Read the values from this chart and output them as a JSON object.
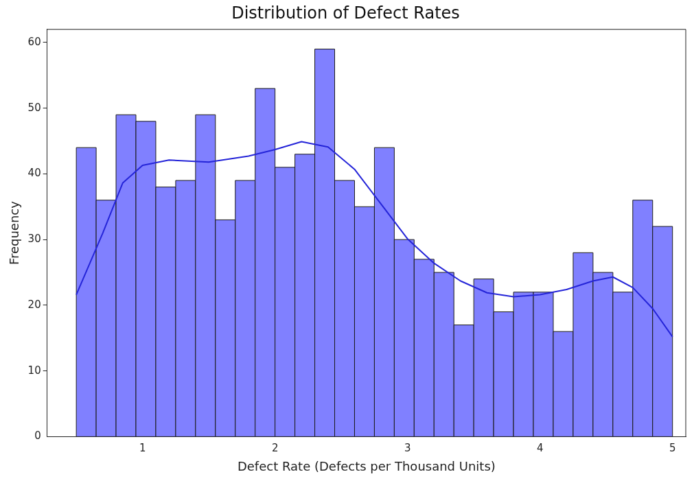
{
  "chart_data": {
    "type": "histogram",
    "title": "Distribution of Defect Rates",
    "xlabel": "Defect Rate (Defects per Thousand Units)",
    "ylabel": "Frequency",
    "bins": [
      0.5,
      0.65,
      0.8,
      0.95,
      1.1,
      1.25,
      1.4,
      1.55,
      1.7,
      1.85,
      2.0,
      2.15,
      2.3,
      2.45,
      2.6,
      2.75,
      2.9,
      3.05,
      3.2,
      3.35,
      3.5,
      3.65,
      3.8,
      3.95,
      4.1,
      4.25,
      4.4,
      4.55,
      4.7,
      4.85,
      5.0
    ],
    "values": [
      44,
      36,
      49,
      48,
      38,
      39,
      49,
      33,
      39,
      53,
      41,
      43,
      59,
      39,
      35,
      44,
      30,
      27,
      25,
      17,
      24,
      19,
      22,
      22,
      16,
      28,
      25,
      22,
      36,
      32
    ],
    "color": "#8080ff",
    "series": [
      {
        "type": "line",
        "color": "#2424d8",
        "x": [
          0.5,
          0.7,
          0.85,
          1.0,
          1.2,
          1.5,
          1.8,
          2.0,
          2.2,
          2.4,
          2.6,
          2.8,
          3.0,
          3.2,
          3.4,
          3.6,
          3.8,
          4.0,
          4.2,
          4.4,
          4.55,
          4.7,
          4.85,
          5.0
        ],
        "values": [
          21.6,
          31,
          38.6,
          41.3,
          42.1,
          41.8,
          42.7,
          43.7,
          44.9,
          44.1,
          40.7,
          35.4,
          30.1,
          26.4,
          23.7,
          21.9,
          21.3,
          21.6,
          22.4,
          23.7,
          24.3,
          22.7,
          19.5,
          15.2
        ]
      }
    ],
    "xlim": [
      0.28,
      5.1
    ],
    "xticks": [
      1,
      2,
      3,
      4,
      5
    ],
    "ylim": [
      0,
      62
    ],
    "yticks": [
      0,
      10,
      20,
      30,
      40,
      50,
      60
    ],
    "marker": "none"
  }
}
